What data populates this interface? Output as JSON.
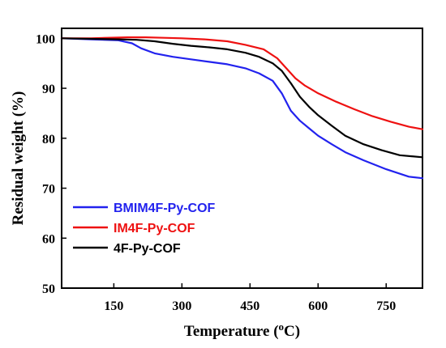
{
  "chart_data": {
    "type": "line",
    "xlabel": "Temperature (",
    "xlabel_sup": "o",
    "xlabel_tail": "C)",
    "ylabel": "Residual weight (%)",
    "xlim": [
      35,
      830
    ],
    "ylim": [
      50,
      102
    ],
    "xticks": [
      150,
      300,
      450,
      600,
      750
    ],
    "yticks": [
      50,
      60,
      70,
      80,
      90,
      100
    ],
    "grid": false,
    "legend_position": "bottom-left",
    "series": [
      {
        "name": "BMIM4F-Py-COF",
        "color": "#2222ee",
        "x": [
          35,
          100,
          160,
          190,
          210,
          240,
          280,
          320,
          360,
          400,
          440,
          470,
          500,
          520,
          540,
          560,
          580,
          600,
          630,
          660,
          700,
          750,
          800,
          830
        ],
        "y": [
          100,
          99.8,
          99.6,
          99,
          98,
          97,
          96.3,
          95.8,
          95.3,
          94.8,
          94,
          93,
          91.5,
          89,
          85.5,
          83.5,
          82,
          80.5,
          78.8,
          77.2,
          75.6,
          73.8,
          72.3,
          72
        ]
      },
      {
        "name": "IM4F-Py-COF",
        "color": "#ee1111",
        "x": [
          35,
          100,
          180,
          220,
          260,
          300,
          350,
          400,
          440,
          480,
          510,
          530,
          550,
          570,
          600,
          640,
          680,
          720,
          760,
          800,
          830
        ],
        "y": [
          100,
          100,
          100.2,
          100.2,
          100.1,
          100,
          99.8,
          99.4,
          98.7,
          97.8,
          96,
          94,
          92,
          90.6,
          89,
          87.3,
          85.8,
          84.4,
          83.3,
          82.3,
          81.8
        ]
      },
      {
        "name": "4F-Py-COF",
        "color": "#000000",
        "x": [
          35,
          100,
          160,
          200,
          240,
          280,
          320,
          360,
          400,
          440,
          470,
          500,
          520,
          540,
          560,
          580,
          600,
          630,
          660,
          700,
          740,
          780,
          830
        ],
        "y": [
          100,
          99.9,
          99.8,
          99.7,
          99.4,
          98.9,
          98.5,
          98.2,
          97.8,
          97.1,
          96.3,
          95,
          93.5,
          91,
          88.3,
          86.3,
          84.6,
          82.5,
          80.5,
          78.8,
          77.6,
          76.6,
          76.2
        ]
      }
    ]
  }
}
